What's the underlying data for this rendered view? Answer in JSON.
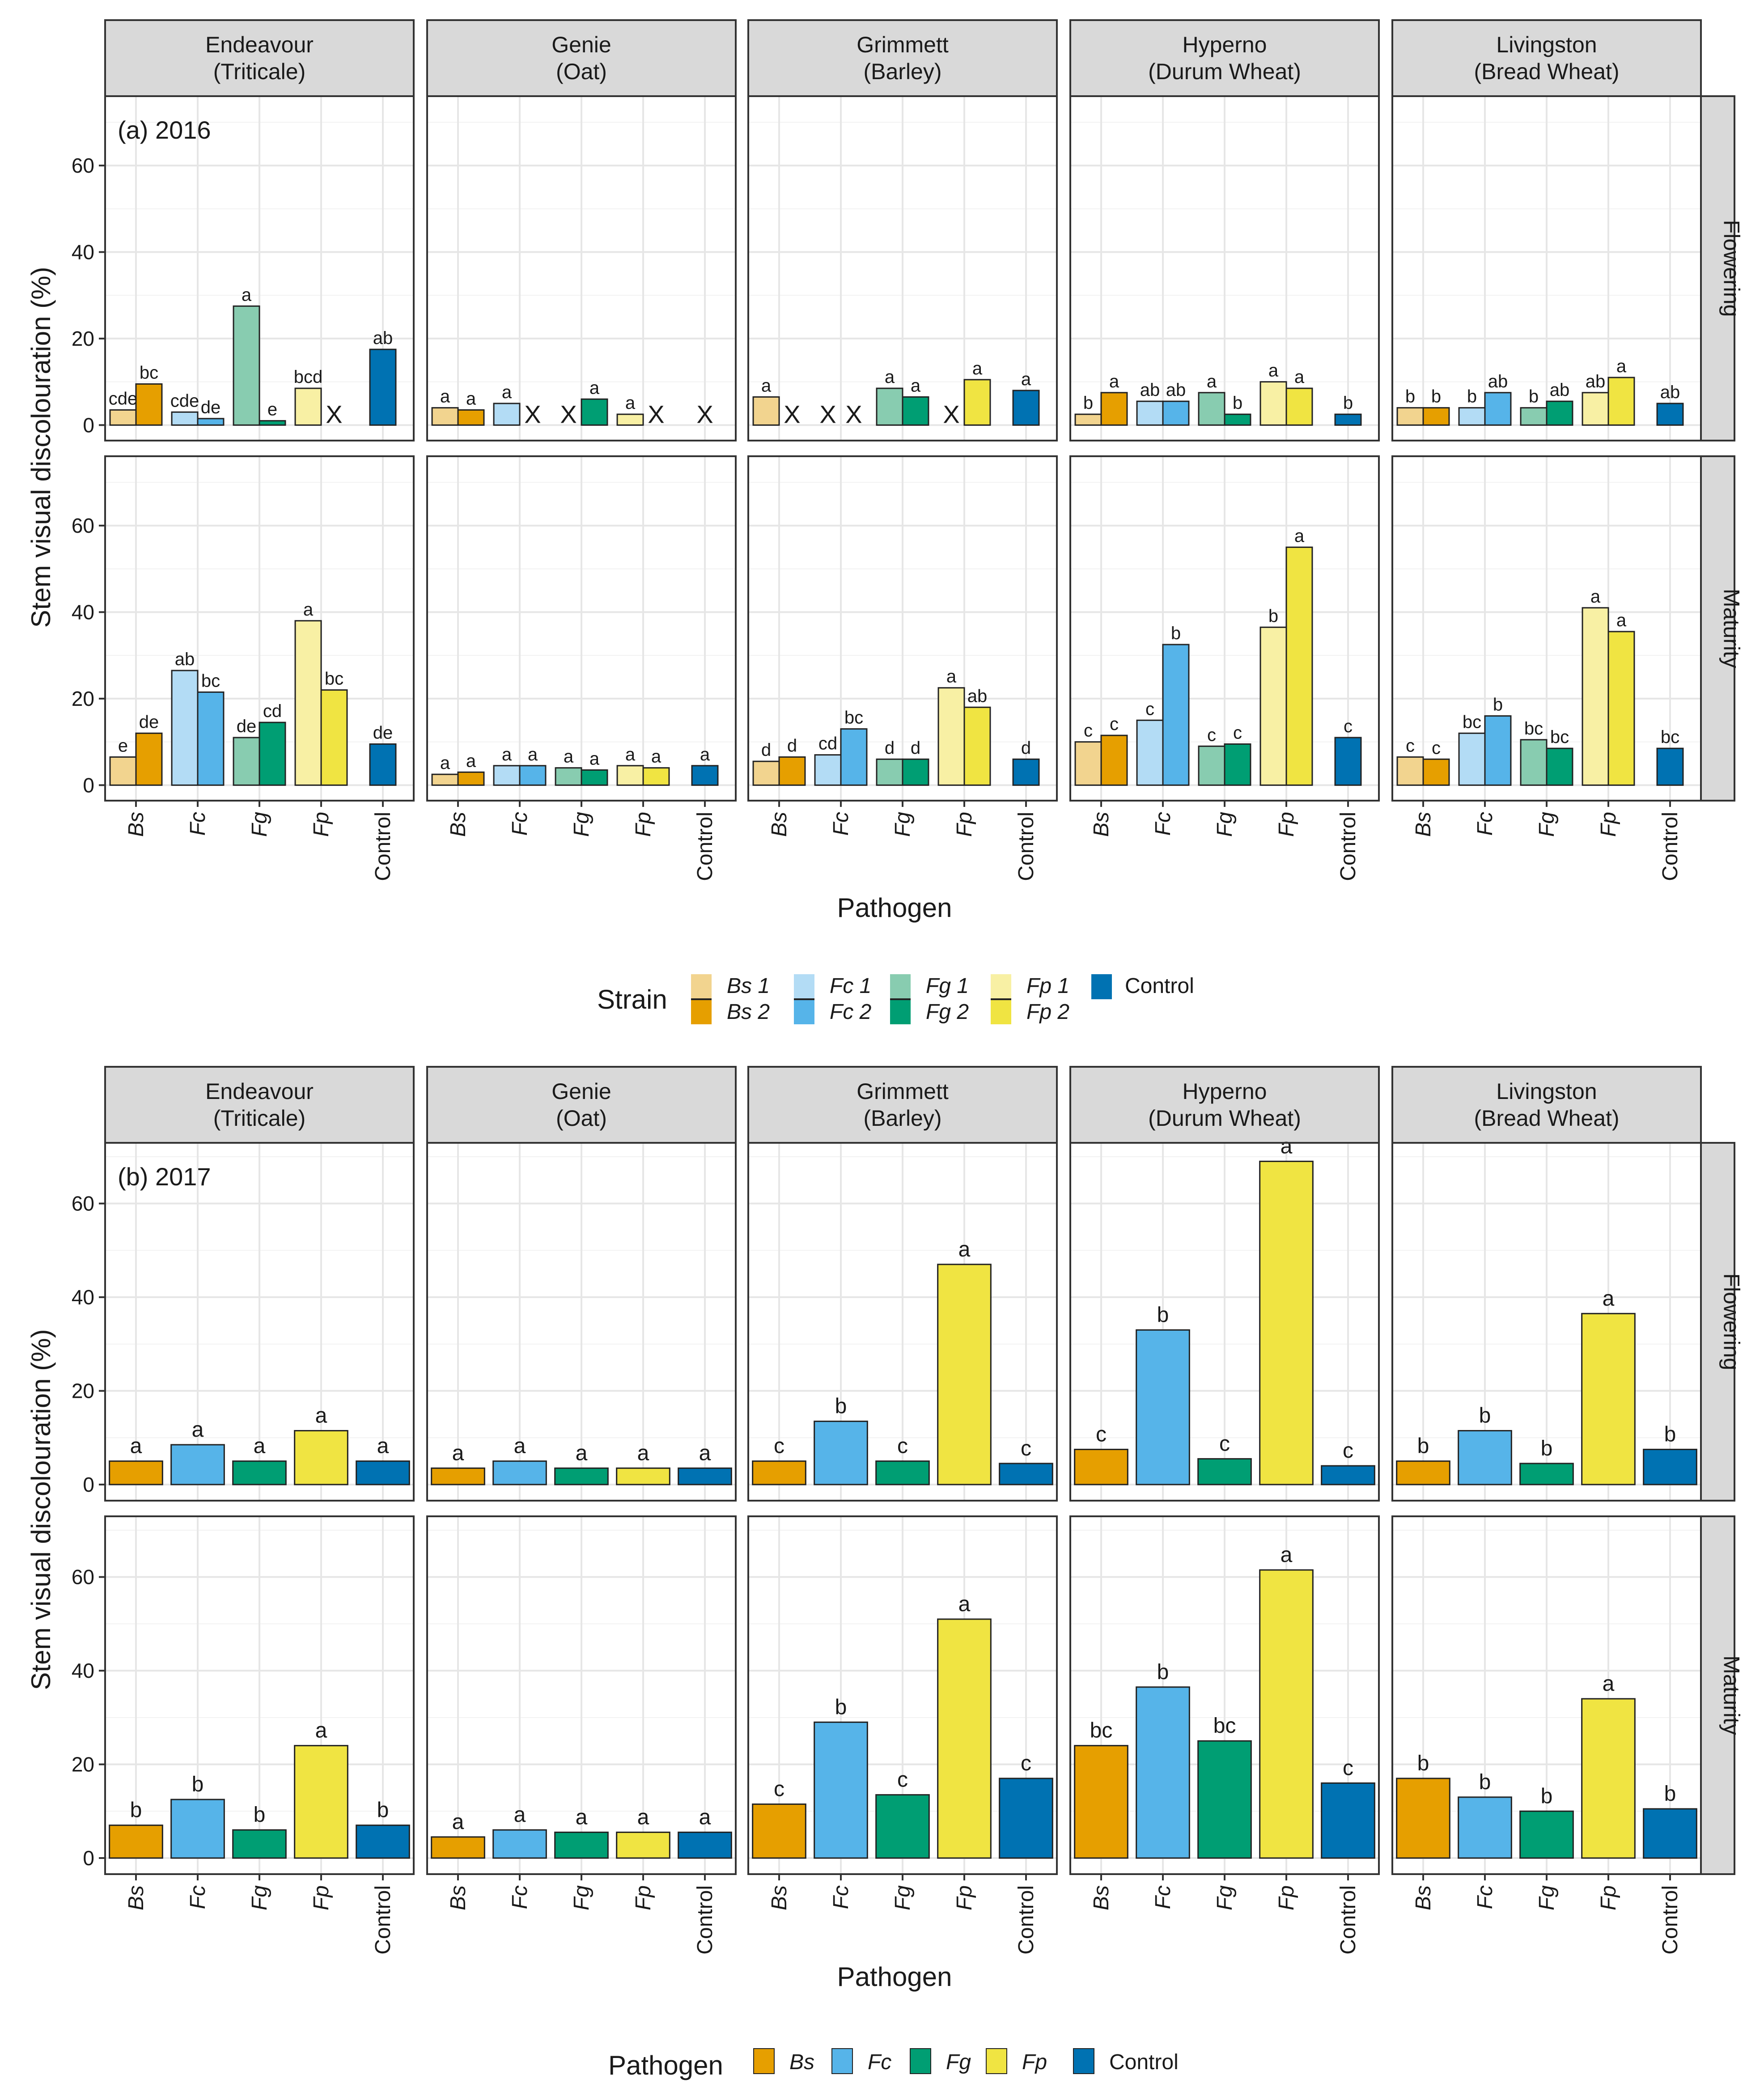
{
  "chart_data": [
    {
      "type": "bar",
      "panel_label": "(a) 2016",
      "xlabel": "Pathogen",
      "ylabel": "Stem visual discolouration (%)",
      "ylim": [
        0,
        75
      ],
      "yticks": [
        0,
        20,
        40,
        60
      ],
      "categories": [
        "Bs",
        "Fc",
        "Fg",
        "Fp",
        "Control"
      ],
      "columns": [
        {
          "line1": "Endeavour",
          "line2": "(Triticale)"
        },
        {
          "line1": "Genie",
          "line2": "(Oat)"
        },
        {
          "line1": "Grimmett",
          "line2": "(Barley)"
        },
        {
          "line1": "Hyperno",
          "line2": "(Durum Wheat)"
        },
        {
          "line1": "Livingston",
          "line2": "(Bread Wheat)"
        }
      ],
      "rows": [
        "Flowering",
        "Maturity"
      ],
      "missing_marker": "X",
      "legend": {
        "title": "Strain",
        "items": [
          {
            "label1": "Bs 1",
            "label2": "Bs 2",
            "color1": "#F2D48F",
            "color2": "#E69F00"
          },
          {
            "label1": "Fc 1",
            "label2": "Fc 2",
            "color1": "#B3DCF5",
            "color2": "#56B4E9"
          },
          {
            "label1": "Fg 1",
            "label2": "Fg 2",
            "color1": "#88CCB0",
            "color2": "#009E73"
          },
          {
            "label1": "Fp 1",
            "label2": "Fp 2",
            "color1": "#F8F0A4",
            "color2": "#F0E442"
          }
        ],
        "control": {
          "label": "Control",
          "color": "#0072B2"
        }
      },
      "panels": [
        {
          "row": 0,
          "col": 0,
          "bars": [
            [
              3.5,
              9.5
            ],
            [
              3,
              1.5
            ],
            [
              27.5,
              1
            ],
            [
              8.5,
              null
            ],
            [
              17.5
            ]
          ],
          "labels": [
            [
              "cde",
              "bc"
            ],
            [
              "cde",
              "de"
            ],
            [
              "a",
              "e"
            ],
            [
              "bcd",
              ""
            ],
            [
              "ab"
            ]
          ]
        },
        {
          "row": 0,
          "col": 1,
          "bars": [
            [
              4,
              3.5
            ],
            [
              5,
              null
            ],
            [
              null,
              6
            ],
            [
              2.5,
              null
            ],
            [
              null
            ]
          ],
          "labels": [
            [
              "a",
              "a"
            ],
            [
              "a",
              ""
            ],
            [
              "",
              "a"
            ],
            [
              "a",
              ""
            ],
            [
              ""
            ]
          ]
        },
        {
          "row": 0,
          "col": 2,
          "bars": [
            [
              6.5,
              null
            ],
            [
              null,
              null
            ],
            [
              8.5,
              6.5
            ],
            [
              null,
              10.5
            ],
            [
              8
            ]
          ],
          "labels": [
            [
              "a",
              ""
            ],
            [
              "",
              ""
            ],
            [
              "a",
              "a"
            ],
            [
              "",
              "a"
            ],
            [
              "a"
            ]
          ]
        },
        {
          "row": 0,
          "col": 3,
          "bars": [
            [
              2.5,
              7.5
            ],
            [
              5.5,
              5.5
            ],
            [
              7.5,
              2.5
            ],
            [
              10,
              8.5
            ],
            [
              2.5
            ]
          ],
          "labels": [
            [
              "b",
              "a"
            ],
            [
              "ab",
              "ab"
            ],
            [
              "a",
              "b"
            ],
            [
              "a",
              "a"
            ],
            [
              "b"
            ]
          ]
        },
        {
          "row": 0,
          "col": 4,
          "bars": [
            [
              4,
              4
            ],
            [
              4,
              7.5
            ],
            [
              4,
              5.5
            ],
            [
              7.5,
              11
            ],
            [
              5
            ]
          ],
          "labels": [
            [
              "b",
              "b"
            ],
            [
              "b",
              "ab"
            ],
            [
              "b",
              "ab"
            ],
            [
              "ab",
              "a"
            ],
            [
              "ab"
            ]
          ]
        },
        {
          "row": 1,
          "col": 0,
          "bars": [
            [
              6.5,
              12
            ],
            [
              26.5,
              21.5
            ],
            [
              11,
              14.5
            ],
            [
              38,
              22
            ],
            [
              9.5
            ]
          ],
          "labels": [
            [
              "e",
              "de"
            ],
            [
              "ab",
              "bc"
            ],
            [
              "de",
              "cd"
            ],
            [
              "a",
              "bc"
            ],
            [
              "de"
            ]
          ]
        },
        {
          "row": 1,
          "col": 1,
          "bars": [
            [
              2.5,
              3
            ],
            [
              4.5,
              4.5
            ],
            [
              4,
              3.5
            ],
            [
              4.5,
              4
            ],
            [
              4.5
            ]
          ],
          "labels": [
            [
              "a",
              "a"
            ],
            [
              "a",
              "a"
            ],
            [
              "a",
              "a"
            ],
            [
              "a",
              "a"
            ],
            [
              "a"
            ]
          ]
        },
        {
          "row": 1,
          "col": 2,
          "bars": [
            [
              5.5,
              6.5
            ],
            [
              7,
              13
            ],
            [
              6,
              6
            ],
            [
              22.5,
              18
            ],
            [
              6
            ]
          ],
          "labels": [
            [
              "d",
              "d"
            ],
            [
              "cd",
              "bc"
            ],
            [
              "d",
              "d"
            ],
            [
              "a",
              "ab"
            ],
            [
              "d"
            ]
          ]
        },
        {
          "row": 1,
          "col": 3,
          "bars": [
            [
              10,
              11.5
            ],
            [
              15,
              32.5
            ],
            [
              9,
              9.5
            ],
            [
              36.5,
              55
            ],
            [
              11
            ]
          ],
          "labels": [
            [
              "c",
              "c"
            ],
            [
              "c",
              "b"
            ],
            [
              "c",
              "c"
            ],
            [
              "b",
              "a"
            ],
            [
              "c"
            ]
          ]
        },
        {
          "row": 1,
          "col": 4,
          "bars": [
            [
              6.5,
              6
            ],
            [
              12,
              16
            ],
            [
              10.5,
              8.5
            ],
            [
              41,
              35.5
            ],
            [
              8.5
            ]
          ],
          "labels": [
            [
              "c",
              "c"
            ],
            [
              "bc",
              "b"
            ],
            [
              "bc",
              "bc"
            ],
            [
              "a",
              "a"
            ],
            [
              "bc"
            ]
          ]
        }
      ]
    },
    {
      "type": "bar",
      "panel_label": "(b) 2017",
      "xlabel": "Pathogen",
      "ylabel": "Stem visual discolouration (%)",
      "ylim": [
        0,
        72
      ],
      "yticks": [
        0,
        20,
        40,
        60
      ],
      "categories": [
        "Bs",
        "Fc",
        "Fg",
        "Fp",
        "Control"
      ],
      "colors": [
        "#E69F00",
        "#56B4E9",
        "#009E73",
        "#F0E442",
        "#0072B2"
      ],
      "columns": [
        {
          "line1": "Endeavour",
          "line2": "(Triticale)"
        },
        {
          "line1": "Genie",
          "line2": "(Oat)"
        },
        {
          "line1": "Grimmett",
          "line2": "(Barley)"
        },
        {
          "line1": "Hyperno",
          "line2": "(Durum Wheat)"
        },
        {
          "line1": "Livingston",
          "line2": "(Bread Wheat)"
        }
      ],
      "rows": [
        "Flowering",
        "Maturity"
      ],
      "legend": {
        "title": "Pathogen",
        "items": [
          {
            "label": "Bs",
            "color": "#E69F00"
          },
          {
            "label": "Fc",
            "color": "#56B4E9"
          },
          {
            "label": "Fg",
            "color": "#009E73"
          },
          {
            "label": "Fp",
            "color": "#F0E442"
          },
          {
            "label": "Control",
            "color": "#0072B2"
          }
        ]
      },
      "panels": [
        {
          "row": 0,
          "col": 0,
          "values": [
            5,
            8.5,
            5,
            11.5,
            5
          ],
          "labels": [
            "a",
            "a",
            "a",
            "a",
            "a"
          ]
        },
        {
          "row": 0,
          "col": 1,
          "values": [
            3.5,
            5,
            3.5,
            3.5,
            3.5
          ],
          "labels": [
            "a",
            "a",
            "a",
            "a",
            "a"
          ]
        },
        {
          "row": 0,
          "col": 2,
          "values": [
            5,
            13.5,
            5,
            47,
            4.5
          ],
          "labels": [
            "c",
            "b",
            "c",
            "a",
            "c"
          ]
        },
        {
          "row": 0,
          "col": 3,
          "values": [
            7.5,
            33,
            5.5,
            69,
            4
          ],
          "labels": [
            "c",
            "b",
            "c",
            "a",
            "c"
          ]
        },
        {
          "row": 0,
          "col": 4,
          "values": [
            5,
            11.5,
            4.5,
            36.5,
            7.5
          ],
          "labels": [
            "b",
            "b",
            "b",
            "a",
            "b"
          ]
        },
        {
          "row": 1,
          "col": 0,
          "values": [
            7,
            12.5,
            6,
            24,
            7
          ],
          "labels": [
            "b",
            "b",
            "b",
            "a",
            "b"
          ]
        },
        {
          "row": 1,
          "col": 1,
          "values": [
            4.5,
            6,
            5.5,
            5.5,
            5.5
          ],
          "labels": [
            "a",
            "a",
            "a",
            "a",
            "a"
          ]
        },
        {
          "row": 1,
          "col": 2,
          "values": [
            11.5,
            29,
            13.5,
            51,
            17
          ],
          "labels": [
            "c",
            "b",
            "c",
            "a",
            "c"
          ]
        },
        {
          "row": 1,
          "col": 3,
          "values": [
            24,
            36.5,
            25,
            61.5,
            16
          ],
          "labels": [
            "bc",
            "b",
            "bc",
            "a",
            "c"
          ]
        },
        {
          "row": 1,
          "col": 4,
          "values": [
            17,
            13,
            10,
            34,
            10.5
          ],
          "labels": [
            "b",
            "b",
            "b",
            "a",
            "b"
          ]
        }
      ]
    }
  ]
}
